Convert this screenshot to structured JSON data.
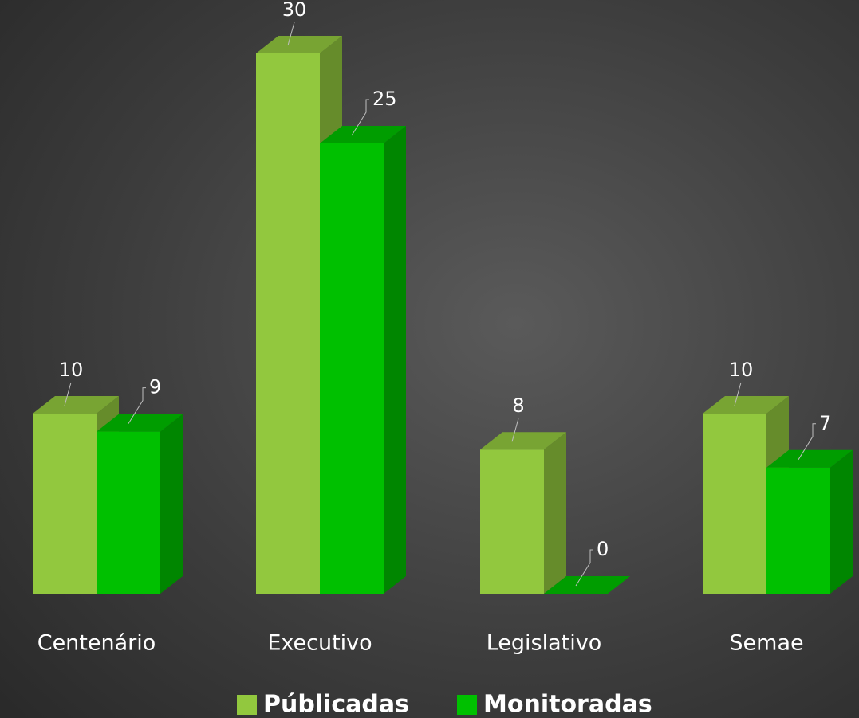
{
  "chart_data": {
    "type": "bar3d",
    "categories": [
      "Centenário",
      "Executivo",
      "Legislativo",
      "Semae"
    ],
    "series": [
      {
        "name": "Públicadas",
        "color": "#92c83e",
        "values": [
          10,
          30,
          8,
          10
        ]
      },
      {
        "name": "Monitoradas",
        "color": "#00c000",
        "values": [
          9,
          25,
          0,
          7
        ]
      }
    ]
  }
}
